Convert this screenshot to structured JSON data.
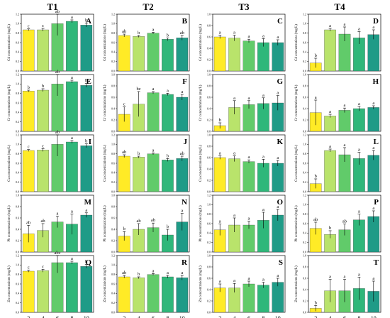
{
  "colors": [
    "#ffeb26",
    "#b9e36b",
    "#61cb6a",
    "#2fb77a",
    "#1f9b87"
  ],
  "columns": [
    "T1",
    "T2",
    "T3",
    "T4"
  ],
  "x_tick_labels": [
    "2",
    "4",
    "6",
    "8",
    "10"
  ],
  "x_axis_label": "Time (Days)",
  "chart_data": [
    {
      "type": "bar",
      "id": "A",
      "ylabel": "Cd concentrations (mg/L)",
      "categories": [
        "2",
        "4",
        "6",
        "8",
        "10"
      ],
      "ylim": [
        0,
        1.2
      ],
      "yticks": [
        "0.0",
        "0.2",
        "0.4",
        "0.6",
        "0.8",
        "1.0",
        "1.2"
      ],
      "values": [
        0.87,
        0.87,
        1.0,
        1.05,
        0.97
      ],
      "errors": [
        0.02,
        0.03,
        0.25,
        0.03,
        0.04
      ],
      "labels": [
        "c",
        "c",
        "ab",
        "a",
        "b"
      ]
    },
    {
      "type": "bar",
      "id": "B",
      "ylabel": "Cd concentrations (mg/L)",
      "categories": [
        "2",
        "4",
        "6",
        "8",
        "10"
      ],
      "ylim": [
        0,
        1.2
      ],
      "yticks": [
        "0.0",
        "0.2",
        "0.4",
        "0.6",
        "0.8",
        "1.0",
        "1.2"
      ],
      "values": [
        0.75,
        0.73,
        0.8,
        0.67,
        0.7
      ],
      "errors": [
        0.03,
        0.02,
        0.02,
        0.03,
        0.05
      ],
      "labels": [
        "ab",
        "b",
        "a",
        "b",
        "ab"
      ]
    },
    {
      "type": "bar",
      "id": "C",
      "ylabel": "Cd concentrations (mg/L)",
      "categories": [
        "2",
        "4",
        "6",
        "8",
        "10"
      ],
      "ylim": [
        0,
        1.0
      ],
      "yticks": [
        "0.0",
        "0.2",
        "0.4",
        "0.6",
        "0.8",
        "1.0"
      ],
      "values": [
        0.6,
        0.58,
        0.53,
        0.5,
        0.5
      ],
      "errors": [
        0.03,
        0.05,
        0.03,
        0.07,
        0.05
      ],
      "labels": [
        "a",
        "a",
        "a",
        "a",
        "a"
      ]
    },
    {
      "type": "bar",
      "id": "D",
      "ylabel": "Cd concentrations (mg/L)",
      "categories": [
        "2",
        "4",
        "6",
        "8",
        "10"
      ],
      "ylim": [
        0,
        1.2
      ],
      "yticks": [
        "0.0",
        "0.2",
        "0.4",
        "0.6",
        "0.8",
        "1.0",
        "1.2"
      ],
      "values": [
        0.17,
        0.87,
        0.78,
        0.7,
        0.77
      ],
      "errors": [
        0.1,
        0.03,
        0.15,
        0.13,
        0.1
      ],
      "labels": [
        "b",
        "a",
        "a",
        "a",
        "a"
      ]
    },
    {
      "type": "bar",
      "id": "E",
      "ylabel": "Cr concentrations (mg/L)",
      "categories": [
        "2",
        "4",
        "6",
        "8",
        "10"
      ],
      "ylim": [
        0,
        1.2
      ],
      "yticks": [
        "0.0",
        "0.2",
        "0.4",
        "0.6",
        "0.8",
        "1.0",
        "1.2"
      ],
      "values": [
        0.85,
        0.87,
        1.0,
        1.05,
        0.97
      ],
      "errors": [
        0.02,
        0.03,
        0.25,
        0.03,
        0.04
      ],
      "labels": [
        "b",
        "b",
        "ab",
        "a",
        "b"
      ]
    },
    {
      "type": "bar",
      "id": "F",
      "ylabel": "Cr concentrations (mg/L)",
      "categories": [
        "2",
        "4",
        "6",
        "8",
        "10"
      ],
      "ylim": [
        0,
        1.0
      ],
      "yticks": [
        "0.0",
        "0.2",
        "0.4",
        "0.6",
        "0.8",
        "1.0"
      ],
      "values": [
        0.3,
        0.48,
        0.68,
        0.65,
        0.6
      ],
      "errors": [
        0.13,
        0.22,
        0.02,
        0.02,
        0.05
      ],
      "labels": [
        "c",
        "bc",
        "a",
        "a",
        "a"
      ]
    },
    {
      "type": "bar",
      "id": "G",
      "ylabel": "Cr concentrations (mg/L)",
      "categories": [
        "2",
        "4",
        "6",
        "8",
        "10"
      ],
      "ylim": [
        0,
        1.0
      ],
      "yticks": [
        "0.0",
        "0.2",
        "0.4",
        "0.6",
        "0.8",
        "1.0"
      ],
      "values": [
        0.1,
        0.42,
        0.47,
        0.49,
        0.5
      ],
      "errors": [
        0.05,
        0.12,
        0.07,
        0.1,
        0.13
      ],
      "labels": [
        "b",
        "a",
        "a",
        "a",
        "a"
      ]
    },
    {
      "type": "bar",
      "id": "H",
      "ylabel": "Cr concentrations (mg/L)",
      "categories": [
        "2",
        "4",
        "6",
        "8",
        "10"
      ],
      "ylim": [
        0,
        1.0
      ],
      "yticks": [
        "0.0",
        "0.2",
        "0.4",
        "0.6",
        "0.8",
        "1.0"
      ],
      "values": [
        0.33,
        0.27,
        0.37,
        0.4,
        0.42
      ],
      "errors": [
        0.22,
        0.03,
        0.04,
        0.04,
        0.03
      ],
      "labels": [
        "a",
        "a",
        "a",
        "a",
        "a"
      ]
    },
    {
      "type": "bar",
      "id": "I",
      "ylabel": "Cu concentrations (mg/L)",
      "categories": [
        "2",
        "4",
        "6",
        "8",
        "10"
      ],
      "ylim": [
        0,
        1.2
      ],
      "yticks": [
        "0.0",
        "0.2",
        "0.4",
        "0.6",
        "0.8",
        "1.0",
        "1.2"
      ],
      "values": [
        0.87,
        0.88,
        1.0,
        1.05,
        0.97
      ],
      "errors": [
        0.02,
        0.03,
        0.25,
        0.03,
        0.04
      ],
      "labels": [
        "c",
        "c",
        "ab",
        "a",
        "b"
      ]
    },
    {
      "type": "bar",
      "id": "J",
      "ylabel": "Cu concentrations (mg/L)",
      "categories": [
        "2",
        "4",
        "6",
        "8",
        "10"
      ],
      "ylim": [
        0,
        1.2
      ],
      "yticks": [
        "0.0",
        "0.2",
        "0.4",
        "0.6",
        "0.8",
        "1.0",
        "1.2"
      ],
      "values": [
        0.75,
        0.73,
        0.8,
        0.67,
        0.7
      ],
      "errors": [
        0.03,
        0.02,
        0.02,
        0.03,
        0.05
      ],
      "labels": [
        "ab",
        "b",
        "a",
        "b",
        "ab"
      ]
    },
    {
      "type": "bar",
      "id": "K",
      "ylabel": "Cu concentrations (mg/L)",
      "categories": [
        "2",
        "4",
        "6",
        "8",
        "10"
      ],
      "ylim": [
        0,
        1.0
      ],
      "yticks": [
        "0.0",
        "0.2",
        "0.4",
        "0.6",
        "0.8",
        "1.0"
      ],
      "values": [
        0.6,
        0.58,
        0.53,
        0.5,
        0.5
      ],
      "errors": [
        0.03,
        0.05,
        0.03,
        0.07,
        0.05
      ],
      "labels": [
        "a",
        "a",
        "a",
        "a",
        "a"
      ]
    },
    {
      "type": "bar",
      "id": "L",
      "ylabel": "Cu concentrations (mg/L)",
      "categories": [
        "2",
        "4",
        "6",
        "8",
        "10"
      ],
      "ylim": [
        0,
        1.2
      ],
      "yticks": [
        "0.0",
        "0.2",
        "0.4",
        "0.6",
        "0.8",
        "1.0",
        "1.2"
      ],
      "values": [
        0.17,
        0.87,
        0.78,
        0.7,
        0.77
      ],
      "errors": [
        0.1,
        0.03,
        0.15,
        0.13,
        0.1
      ],
      "labels": [
        "b",
        "a",
        "a",
        "a",
        "a"
      ]
    },
    {
      "type": "bar",
      "id": "M",
      "ylabel": "Pb concentrations (mg/L)",
      "categories": [
        "2",
        "4",
        "6",
        "8",
        "10"
      ],
      "ylim": [
        0,
        1.0
      ],
      "yticks": [
        "0.0",
        "0.2",
        "0.4",
        "0.6",
        "0.8",
        "1.0"
      ],
      "values": [
        0.32,
        0.38,
        0.53,
        0.49,
        0.65
      ],
      "errors": [
        0.15,
        0.12,
        0.1,
        0.18,
        0.04
      ],
      "labels": [
        "ab",
        "ab",
        "a",
        "a",
        "a"
      ]
    },
    {
      "type": "bar",
      "id": "N",
      "ylabel": "Pb concentrations (mg/L)",
      "categories": [
        "2",
        "4",
        "6",
        "8",
        "10"
      ],
      "ylim": [
        0,
        1.0
      ],
      "yticks": [
        "0.0",
        "0.2",
        "0.4",
        "0.6",
        "0.8",
        "1.0"
      ],
      "values": [
        0.28,
        0.4,
        0.43,
        0.3,
        0.53
      ],
      "errors": [
        0.08,
        0.1,
        0.08,
        0.1,
        0.15
      ],
      "labels": [
        "b",
        "ab",
        "ab",
        "b",
        "a"
      ]
    },
    {
      "type": "bar",
      "id": "O",
      "ylabel": "Pb concentrations (mg/L)",
      "categories": [
        "2",
        "4",
        "6",
        "8",
        "10"
      ],
      "ylim": [
        0,
        1.2
      ],
      "yticks": [
        "0.0",
        "0.2",
        "0.4",
        "0.6",
        "0.8",
        "1.0",
        "1.2"
      ],
      "values": [
        0.47,
        0.57,
        0.57,
        0.67,
        0.78
      ],
      "errors": [
        0.12,
        0.15,
        0.08,
        0.17,
        0.12
      ],
      "labels": [
        "a",
        "a",
        "a",
        "a",
        "a"
      ]
    },
    {
      "type": "bar",
      "id": "P",
      "ylabel": "Pb concentrations (mg/L)",
      "categories": [
        "2",
        "4",
        "6",
        "8",
        "10"
      ],
      "ylim": [
        0,
        1.2
      ],
      "yticks": [
        "0.0",
        "0.2",
        "0.4",
        "0.6",
        "0.8",
        "1.0",
        "1.2"
      ],
      "values": [
        0.5,
        0.37,
        0.47,
        0.68,
        0.75
      ],
      "errors": [
        0.13,
        0.08,
        0.12,
        0.12,
        0.12
      ],
      "labels": [
        "ab",
        "b",
        "ab",
        "a",
        "a"
      ]
    },
    {
      "type": "bar",
      "id": "Q",
      "ylabel": "Zn concentrations (mg/L)",
      "categories": [
        "2",
        "4",
        "6",
        "8",
        "10"
      ],
      "ylim": [
        0,
        1.2
      ],
      "yticks": [
        "0.0",
        "0.2",
        "0.4",
        "0.6",
        "0.8",
        "1.0",
        "1.2"
      ],
      "values": [
        0.87,
        0.88,
        1.05,
        1.05,
        0.97
      ],
      "errors": [
        0.02,
        0.03,
        0.22,
        0.03,
        0.04
      ],
      "labels": [
        "c",
        "c",
        "abc",
        "a",
        "b"
      ]
    },
    {
      "type": "bar",
      "id": "R",
      "ylabel": "Zn concentrations (mg/L)",
      "categories": [
        "2",
        "4",
        "6",
        "8",
        "10"
      ],
      "ylim": [
        0,
        1.2
      ],
      "yticks": [
        "0.0",
        "0.2",
        "0.4",
        "0.6",
        "0.8",
        "1.0",
        "1.2"
      ],
      "values": [
        0.75,
        0.73,
        0.8,
        0.75,
        0.73
      ],
      "errors": [
        0.03,
        0.02,
        0.02,
        0.03,
        0.05
      ],
      "labels": [
        "ab",
        "b",
        "a",
        "a",
        "a"
      ]
    },
    {
      "type": "bar",
      "id": "S",
      "ylabel": "Zn concentrations (mg/L)",
      "categories": [
        "2",
        "4",
        "6",
        "8",
        "10"
      ],
      "ylim": [
        0,
        1.0
      ],
      "yticks": [
        "0.0",
        "0.2",
        "0.4",
        "0.6",
        "0.8",
        "1.0"
      ],
      "values": [
        0.43,
        0.43,
        0.5,
        0.48,
        0.53
      ],
      "errors": [
        0.07,
        0.08,
        0.05,
        0.05,
        0.07
      ],
      "labels": [
        "a",
        "a",
        "a",
        "a",
        "a"
      ]
    },
    {
      "type": "bar",
      "id": "T",
      "ylabel": "Zn concentrations (mg/L)",
      "categories": [
        "2",
        "4",
        "6",
        "8",
        "10"
      ],
      "ylim": [
        0,
        1.0
      ],
      "yticks": [
        "0.0",
        "0.2",
        "0.4",
        "0.6",
        "0.8",
        "1.0"
      ],
      "values": [
        0.07,
        0.38,
        0.38,
        0.42,
        0.37
      ],
      "errors": [
        0.05,
        0.2,
        0.2,
        0.2,
        0.18
      ],
      "labels": [
        "b",
        "a",
        "a",
        "a",
        "a"
      ]
    }
  ]
}
